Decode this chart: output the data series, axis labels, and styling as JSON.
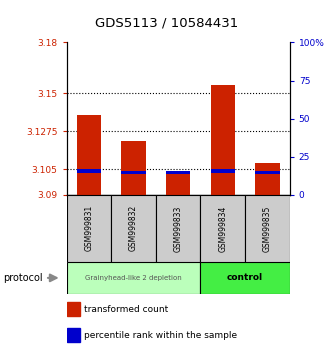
{
  "title": "GDS5113 / 10584431",
  "samples": [
    "GSM999831",
    "GSM999832",
    "GSM999833",
    "GSM999834",
    "GSM999835"
  ],
  "red_values": [
    3.137,
    3.122,
    3.103,
    3.155,
    3.109
  ],
  "blue_values": [
    3.104,
    3.103,
    3.103,
    3.104,
    3.103
  ],
  "base_value": 3.09,
  "ylim_left": [
    3.09,
    3.18
  ],
  "ylim_right": [
    0,
    100
  ],
  "yticks_left": [
    3.09,
    3.105,
    3.1275,
    3.15,
    3.18
  ],
  "ytick_labels_left": [
    "3.09",
    "3.105",
    "3.1275",
    "3.15",
    "3.18"
  ],
  "yticks_right": [
    0,
    25,
    50,
    75,
    100
  ],
  "ytick_labels_right": [
    "0",
    "25",
    "50",
    "75",
    "100%"
  ],
  "red_color": "#cc2200",
  "blue_color": "#0000cc",
  "bar_width": 0.55,
  "group1_label": "Grainyhead-like 2 depletion",
  "group2_label": "control",
  "group1_color": "#bbffbb",
  "group2_color": "#44ee44",
  "protocol_label": "protocol",
  "legend_red": "transformed count",
  "legend_blue": "percentile rank within the sample",
  "label_area_color": "#cccccc",
  "dotted_lines": [
    3.105,
    3.1275,
    3.15
  ],
  "blue_bar_height": 0.002
}
